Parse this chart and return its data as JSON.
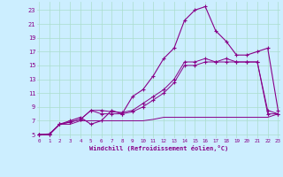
{
  "xlabel": "Windchill (Refroidissement éolien,°C)",
  "background_color": "#cceeff",
  "grid_color": "#aaddcc",
  "line_color": "#880088",
  "x_ticks": [
    0,
    1,
    2,
    3,
    4,
    5,
    6,
    7,
    8,
    9,
    10,
    11,
    12,
    13,
    14,
    15,
    16,
    17,
    18,
    19,
    20,
    21,
    22,
    23
  ],
  "y_ticks": [
    5,
    7,
    9,
    11,
    13,
    15,
    17,
    19,
    21,
    23
  ],
  "xlim": [
    -0.2,
    23.2
  ],
  "ylim": [
    4.5,
    24.2
  ],
  "series1_x": [
    0,
    1,
    2,
    3,
    4,
    5,
    6,
    7,
    8,
    9,
    10,
    11,
    12,
    13,
    14,
    15,
    16,
    17,
    18,
    19,
    20,
    21,
    22,
    23
  ],
  "series1_y": [
    5.0,
    5.1,
    6.5,
    7.0,
    7.5,
    6.5,
    7.0,
    8.5,
    8.0,
    10.5,
    11.5,
    13.5,
    16.0,
    17.5,
    21.5,
    23.0,
    23.5,
    20.0,
    18.5,
    16.5,
    16.5,
    17.0,
    17.5,
    8.5
  ],
  "series2_x": [
    0,
    1,
    2,
    3,
    4,
    5,
    6,
    7,
    8,
    9,
    10,
    11,
    12,
    13,
    14,
    15,
    16,
    17,
    18,
    19,
    20,
    21,
    22,
    23
  ],
  "series2_y": [
    5.0,
    5.0,
    6.5,
    6.8,
    7.2,
    8.5,
    8.5,
    8.3,
    8.2,
    8.5,
    9.5,
    10.5,
    11.5,
    13.0,
    15.5,
    15.5,
    16.0,
    15.5,
    16.0,
    15.5,
    15.5,
    15.5,
    8.5,
    8.0
  ],
  "series3_x": [
    0,
    1,
    2,
    3,
    4,
    5,
    6,
    7,
    8,
    9,
    10,
    11,
    12,
    13,
    14,
    15,
    16,
    17,
    18,
    19,
    20,
    21,
    22,
    23
  ],
  "series3_y": [
    5.0,
    5.0,
    6.5,
    6.8,
    7.2,
    8.5,
    8.0,
    8.0,
    8.0,
    8.3,
    9.0,
    10.0,
    11.0,
    12.5,
    15.0,
    15.0,
    15.5,
    15.5,
    15.5,
    15.5,
    15.5,
    15.5,
    8.0,
    8.0
  ],
  "series4_x": [
    0,
    1,
    2,
    3,
    4,
    5,
    6,
    7,
    8,
    9,
    10,
    11,
    12,
    13,
    14,
    15,
    16,
    17,
    18,
    19,
    20,
    21,
    22,
    23
  ],
  "series4_y": [
    5.0,
    5.0,
    6.5,
    6.5,
    7.0,
    7.0,
    7.0,
    7.0,
    7.0,
    7.0,
    7.0,
    7.2,
    7.5,
    7.5,
    7.5,
    7.5,
    7.5,
    7.5,
    7.5,
    7.5,
    7.5,
    7.5,
    7.5,
    8.0
  ]
}
